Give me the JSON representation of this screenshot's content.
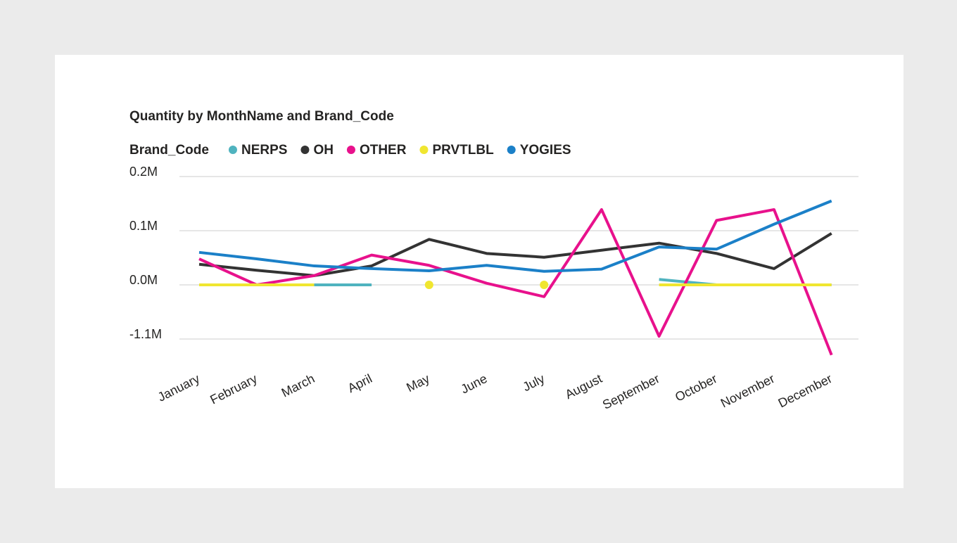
{
  "chart_data": {
    "type": "line",
    "title": "Quantity by MonthName and Brand_Code",
    "legend_title": "Brand_Code",
    "categories": [
      "January",
      "February",
      "March",
      "April",
      "May",
      "June",
      "July",
      "August",
      "September",
      "October",
      "November",
      "December"
    ],
    "series": [
      {
        "name": "NERPS",
        "color": "#4fb3bf",
        "values": [
          null,
          null,
          0,
          0,
          null,
          null,
          null,
          null,
          10000,
          0,
          0,
          0
        ]
      },
      {
        "name": "OH",
        "color": "#333333",
        "values": [
          38000,
          27000,
          17000,
          35000,
          84000,
          58000,
          51000,
          64000,
          77000,
          58000,
          30000,
          95000
        ]
      },
      {
        "name": "OTHER",
        "color": "#e8118c",
        "values": [
          48000,
          0,
          17000,
          55000,
          36000,
          3000,
          -240000,
          139000,
          -1043000,
          119000,
          139000,
          -1424000
        ]
      },
      {
        "name": "PRVTLBL",
        "color": "#f0e630",
        "values": [
          0,
          0,
          0,
          null,
          0,
          null,
          0,
          null,
          0,
          0,
          0,
          0
        ]
      },
      {
        "name": "YOGIES",
        "color": "#1b80c8",
        "values": [
          60000,
          48000,
          35000,
          30000,
          26000,
          36000,
          25000,
          29000,
          70000,
          66000,
          112000,
          155000
        ]
      }
    ],
    "ylim": [
      -1100000,
      200000
    ],
    "yticks": [
      {
        "value": 200000,
        "label": "0.2M"
      },
      {
        "value": 100000,
        "label": "0.1M"
      },
      {
        "value": 0,
        "label": "0.0M"
      },
      {
        "value": -1100000,
        "label": "-1.1M"
      }
    ],
    "grid": true
  }
}
